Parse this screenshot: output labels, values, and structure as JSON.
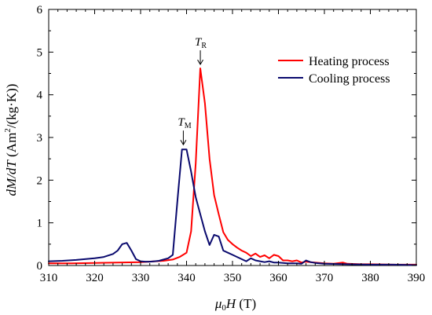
{
  "chart_data": {
    "type": "line",
    "xlabel": {
      "italic": "μ",
      "sub": "0",
      "italic2": "H",
      "rest": " (T)"
    },
    "ylabel": {
      "italic": "dM/dT",
      "rest": " (Am",
      "sup": "2",
      "rest2": "/(kg·K))"
    },
    "xlim": [
      310,
      390
    ],
    "ylim": [
      0,
      6
    ],
    "xticks": [
      310,
      320,
      330,
      340,
      350,
      360,
      370,
      380,
      390
    ],
    "yticks": [
      0,
      1,
      2,
      3,
      4,
      5,
      6
    ],
    "x_tick_labels": [
      "310",
      "320",
      "330",
      "340",
      "350",
      "360",
      "370",
      "380",
      "390"
    ],
    "y_tick_labels": [
      "0",
      "1",
      "2",
      "3",
      "4",
      "5",
      "6"
    ],
    "legend_position": "top-right",
    "annotations": [
      {
        "name": "t-r",
        "main": "T",
        "sub": "R",
        "x": 343,
        "y": 4.6
      },
      {
        "name": "t-m",
        "main": "T",
        "sub": "M",
        "x": 339.3,
        "y": 2.72
      }
    ],
    "series": [
      {
        "name": "Heating process",
        "color": "#ff0000",
        "points": [
          [
            310,
            0.05
          ],
          [
            315,
            0.05
          ],
          [
            320,
            0.06
          ],
          [
            325,
            0.07
          ],
          [
            330,
            0.08
          ],
          [
            335,
            0.11
          ],
          [
            337,
            0.14
          ],
          [
            338.5,
            0.2
          ],
          [
            340,
            0.3
          ],
          [
            341,
            0.8
          ],
          [
            342,
            2.4
          ],
          [
            343,
            4.62
          ],
          [
            344,
            3.8
          ],
          [
            345,
            2.5
          ],
          [
            346,
            1.65
          ],
          [
            347,
            1.2
          ],
          [
            348,
            0.78
          ],
          [
            349,
            0.6
          ],
          [
            350,
            0.5
          ],
          [
            351,
            0.42
          ],
          [
            352,
            0.35
          ],
          [
            353,
            0.3
          ],
          [
            354,
            0.22
          ],
          [
            355,
            0.28
          ],
          [
            356,
            0.2
          ],
          [
            357,
            0.24
          ],
          [
            358,
            0.17
          ],
          [
            359,
            0.25
          ],
          [
            360,
            0.22
          ],
          [
            361,
            0.12
          ],
          [
            362,
            0.12
          ],
          [
            363,
            0.1
          ],
          [
            364,
            0.12
          ],
          [
            365,
            0.07
          ],
          [
            366,
            0.09
          ],
          [
            367,
            0.08
          ],
          [
            368,
            0.07
          ],
          [
            370,
            0.05
          ],
          [
            372,
            0.04
          ],
          [
            374,
            0.07
          ],
          [
            375,
            0.04
          ],
          [
            378,
            0.03
          ],
          [
            380,
            0.03
          ],
          [
            385,
            0.02
          ],
          [
            390,
            0.02
          ]
        ]
      },
      {
        "name": "Cooling process",
        "color": "#0a0a6e",
        "points": [
          [
            310,
            0.1
          ],
          [
            313,
            0.11
          ],
          [
            316,
            0.13
          ],
          [
            320,
            0.17
          ],
          [
            322,
            0.2
          ],
          [
            324,
            0.27
          ],
          [
            325,
            0.35
          ],
          [
            326,
            0.5
          ],
          [
            327,
            0.53
          ],
          [
            328,
            0.35
          ],
          [
            329,
            0.15
          ],
          [
            330,
            0.1
          ],
          [
            331,
            0.09
          ],
          [
            332,
            0.09
          ],
          [
            333,
            0.1
          ],
          [
            334,
            0.11
          ],
          [
            335,
            0.14
          ],
          [
            336,
            0.17
          ],
          [
            337,
            0.25
          ],
          [
            338,
            1.5
          ],
          [
            339,
            2.72
          ],
          [
            340,
            2.72
          ],
          [
            341,
            2.2
          ],
          [
            342,
            1.6
          ],
          [
            343,
            1.2
          ],
          [
            344,
            0.8
          ],
          [
            345,
            0.48
          ],
          [
            346,
            0.72
          ],
          [
            347,
            0.68
          ],
          [
            348,
            0.35
          ],
          [
            349,
            0.3
          ],
          [
            350,
            0.25
          ],
          [
            351,
            0.2
          ],
          [
            352,
            0.15
          ],
          [
            353,
            0.1
          ],
          [
            354,
            0.17
          ],
          [
            355,
            0.12
          ],
          [
            356,
            0.1
          ],
          [
            357,
            0.08
          ],
          [
            358,
            0.1
          ],
          [
            359,
            0.07
          ],
          [
            360,
            0.07
          ],
          [
            362,
            0.05
          ],
          [
            364,
            0.05
          ],
          [
            365,
            0.04
          ],
          [
            366,
            0.12
          ],
          [
            367,
            0.08
          ],
          [
            368,
            0.06
          ],
          [
            370,
            0.04
          ],
          [
            375,
            0.03
          ],
          [
            380,
            0.02
          ],
          [
            385,
            0.02
          ],
          [
            390,
            0.01
          ]
        ]
      }
    ]
  }
}
